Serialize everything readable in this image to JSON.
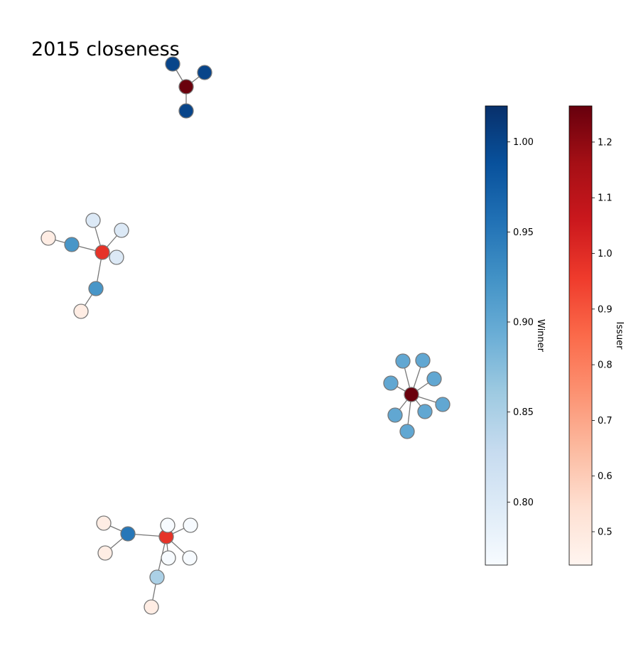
{
  "chart_data": {
    "type": "network",
    "title": "2015 closeness",
    "colorbars": [
      {
        "name": "Winner",
        "label": "Winner",
        "colormap": "Blues",
        "range": [
          0.765,
          1.02
        ],
        "ticks": [
          "0.80",
          "0.85",
          "0.90",
          "0.95",
          "1.00"
        ],
        "tick_values": [
          0.8,
          0.85,
          0.9,
          0.95,
          1.0
        ]
      },
      {
        "name": "Issuer",
        "label": "Issuer",
        "colormap": "Reds",
        "range": [
          0.44,
          1.265
        ],
        "ticks": [
          "0.5",
          "0.6",
          "0.7",
          "0.8",
          "0.9",
          "1.0",
          "1.1",
          "1.2"
        ],
        "tick_values": [
          0.5,
          0.6,
          0.7,
          0.8,
          0.9,
          1.0,
          1.1,
          1.2
        ]
      }
    ],
    "components": [
      {
        "hub": {
          "role": "Issuer",
          "value": 1.26
        },
        "winners": [
          {
            "value": 1.0
          },
          {
            "value": 1.0
          },
          {
            "value": 1.0
          }
        ]
      },
      {
        "hub": {
          "role": "Issuer",
          "value": 0.98
        },
        "winners": [
          {
            "value": 0.92
          },
          {
            "value": 0.8
          },
          {
            "value": 0.8
          },
          {
            "value": 0.8
          },
          {
            "value": 0.92
          }
        ],
        "issuers": [
          {
            "value": 0.48,
            "linked_to": 0
          },
          {
            "value": 0.48,
            "linked_to": 4
          }
        ]
      },
      {
        "hub": {
          "role": "Issuer",
          "value": 1.26
        },
        "winners": [
          {
            "value": 0.9
          },
          {
            "value": 0.9
          },
          {
            "value": 0.9
          },
          {
            "value": 0.9
          },
          {
            "value": 0.9
          },
          {
            "value": 0.9
          },
          {
            "value": 0.9
          },
          {
            "value": 0.9
          }
        ]
      },
      {
        "hub": {
          "role": "Issuer",
          "value": 0.98
        },
        "winners": [
          {
            "value": 0.95
          },
          {
            "value": 0.765
          },
          {
            "value": 0.765
          },
          {
            "value": 0.765
          },
          {
            "value": 0.765
          },
          {
            "value": 0.85
          }
        ],
        "issuers": [
          {
            "value": 0.48,
            "linked_to": 0
          },
          {
            "value": 0.48,
            "linked_to": 0
          },
          {
            "value": 0.48,
            "linked_to": 5
          }
        ]
      }
    ],
    "grid": false,
    "axes": "off"
  }
}
